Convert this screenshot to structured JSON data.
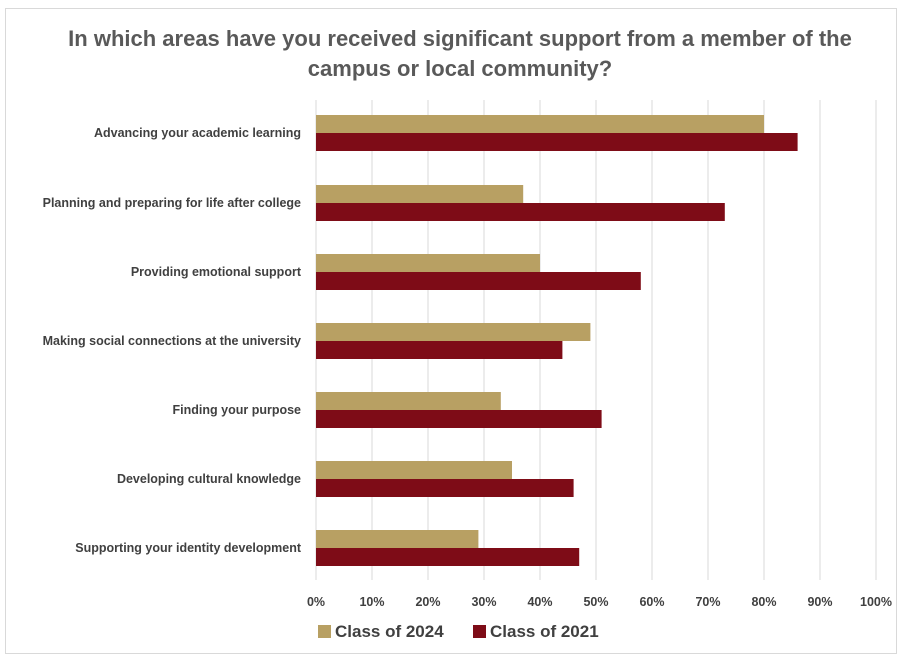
{
  "chart_data": {
    "type": "bar",
    "orientation": "horizontal",
    "title": "In which areas have you received significant support from a member of the campus or local community?",
    "categories": [
      "Advancing your academic learning",
      "Planning and preparing for life after college",
      "Providing emotional support",
      "Making social connections at the university",
      "Finding your purpose",
      "Developing cultural knowledge",
      "Supporting your identity development"
    ],
    "series": [
      {
        "name": "Class of 2024",
        "color": "#B8A063",
        "values": [
          80,
          37,
          40,
          49,
          33,
          35,
          29
        ]
      },
      {
        "name": "Class of 2021",
        "color": "#7E0C17",
        "values": [
          86,
          73,
          58,
          44,
          51,
          46,
          47
        ]
      }
    ],
    "xlim": [
      0,
      100
    ],
    "x_ticks": [
      "0%",
      "10%",
      "20%",
      "30%",
      "40%",
      "50%",
      "60%",
      "70%",
      "80%",
      "90%",
      "100%"
    ],
    "grid": "vertical",
    "legend_position": "bottom"
  }
}
